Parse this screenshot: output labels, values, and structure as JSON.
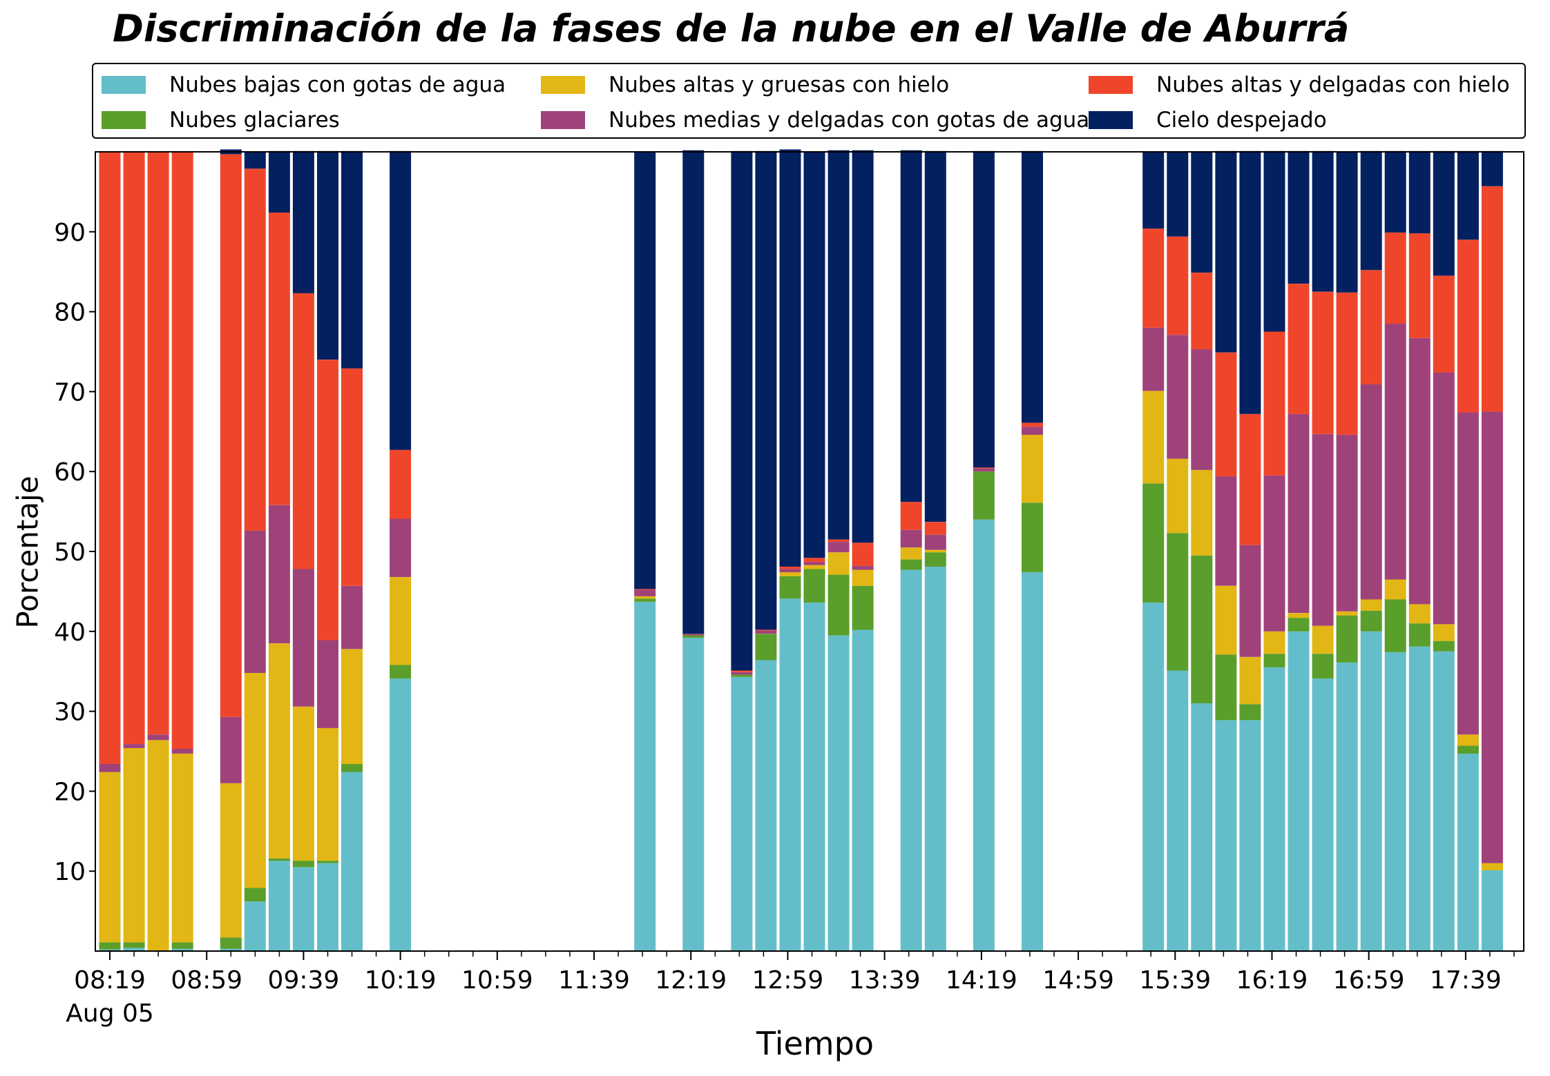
{
  "chart_data": {
    "type": "bar",
    "stacked": true,
    "title": "Discriminación de la fases de la nube en el Valle de Aburrá",
    "xlabel": "Tiempo",
    "ylabel": "Porcentaje",
    "ylim": [
      0,
      100
    ],
    "yticks": [
      10,
      20,
      30,
      40,
      50,
      60,
      70,
      80,
      90
    ],
    "xlim": [
      "08:13",
      "18:03"
    ],
    "date_label": "Aug 05",
    "x_tick_labels": [
      "08:19",
      "08:59",
      "09:39",
      "10:19",
      "10:59",
      "11:39",
      "12:19",
      "12:59",
      "13:39",
      "14:19",
      "14:59",
      "15:39",
      "16:19",
      "16:59",
      "17:39"
    ],
    "minor_tick_interval_minutes": 10,
    "grid": false,
    "legend_position": "top",
    "series": [
      {
        "name": "Nubes bajas con gotas de agua",
        "color": "#64bec9",
        "values": [
          0.2,
          0.4,
          0,
          0.3,
          0.3,
          6.2,
          11.3,
          10.5,
          11.0,
          22.4,
          34.1,
          43.7,
          39.2,
          34.3,
          36.4,
          44.1,
          43.6,
          39.5,
          40.2,
          47.7,
          48.1,
          54.0,
          47.4,
          43.6,
          35.1,
          31.0,
          28.9,
          28.9,
          35.5,
          40.0,
          34.1,
          36.1,
          40.0,
          37.4,
          38.1,
          37.5,
          24.7,
          10.1
        ]
      },
      {
        "name": "Nubes glaciares",
        "color": "#5a9e2b",
        "values": [
          0.9,
          0.7,
          0,
          0.8,
          1.4,
          1.7,
          0.3,
          0.8,
          0.3,
          1.0,
          1.7,
          0.4,
          0.3,
          0.3,
          3.3,
          2.8,
          4.2,
          7.6,
          5.5,
          1.3,
          1.8,
          6.0,
          8.7,
          14.9,
          17.2,
          18.5,
          8.2,
          2.0,
          1.7,
          1.7,
          3.1,
          5.9,
          2.6,
          6.6,
          2.9,
          1.3,
          1.0,
          0
        ]
      },
      {
        "name": "Nubes altas y gruesas con hielo",
        "color": "#e2b614",
        "values": [
          21.3,
          24.3,
          26.4,
          23.6,
          19.3,
          26.9,
          26.9,
          19.3,
          16.6,
          14.4,
          11.0,
          0.3,
          0,
          0,
          0,
          0.5,
          0.5,
          2.8,
          2.0,
          1.5,
          0.3,
          0,
          8.5,
          11.6,
          9.3,
          10.7,
          8.6,
          5.9,
          2.8,
          0.6,
          3.5,
          0.5,
          1.4,
          2.5,
          2.4,
          2.1,
          1.4,
          0.9
        ]
      },
      {
        "name": "Nubes medias y delgadas con gotas de agua",
        "color": "#a0427a",
        "values": [
          1.0,
          0.5,
          0.7,
          0.6,
          8.3,
          17.8,
          17.3,
          17.2,
          11.0,
          7.9,
          7.3,
          0.8,
          0.2,
          0.3,
          0.4,
          0.4,
          0.4,
          1.3,
          0.5,
          2.2,
          1.9,
          0.4,
          1.0,
          7.9,
          15.5,
          15.1,
          13.7,
          14.0,
          19.5,
          24.9,
          24.0,
          22.1,
          26.9,
          32.0,
          33.3,
          31.5,
          40.3,
          56.5
        ]
      },
      {
        "name": "Nubes altas y delgadas con hielo",
        "color": "#ef462b",
        "values": [
          76.6,
          74.1,
          72.9,
          74.7,
          70.4,
          45.3,
          36.6,
          34.5,
          35.1,
          27.2,
          8.6,
          0.1,
          0,
          0.2,
          0.1,
          0.3,
          0.5,
          0.3,
          2.9,
          3.5,
          1.6,
          0.1,
          0.5,
          12.4,
          12.3,
          9.6,
          15.5,
          16.4,
          18.0,
          16.3,
          17.8,
          17.8,
          14.3,
          11.4,
          13.1,
          12.1,
          21.6,
          28.2
        ]
      },
      {
        "name": "Cielo despejado",
        "color": "#032060",
        "values": [
          0,
          0,
          0,
          0,
          0.6,
          2.1,
          7.7,
          17.8,
          26.1,
          27.2,
          37.4,
          54.7,
          60.5,
          65.0,
          59.9,
          52.2,
          50.8,
          48.7,
          49.1,
          44.0,
          46.4,
          39.6,
          34.0,
          9.6,
          10.6,
          15.1,
          25.2,
          32.9,
          22.6,
          16.6,
          17.6,
          17.6,
          14.9,
          10.2,
          10.3,
          15.6,
          11.1,
          4.4
        ]
      }
    ],
    "x": [
      "08:19",
      "08:29",
      "08:39",
      "08:49",
      "09:09",
      "09:19",
      "09:29",
      "09:39",
      "09:49",
      "09:59",
      "10:19",
      "12:00",
      "12:20",
      "12:40",
      "12:50",
      "13:00",
      "13:10",
      "13:20",
      "13:30",
      "13:50",
      "14:00",
      "14:20",
      "14:40",
      "15:30",
      "15:40",
      "15:50",
      "16:00",
      "16:10",
      "16:20",
      "16:30",
      "16:40",
      "16:50",
      "17:00",
      "17:10",
      "17:20",
      "17:30",
      "17:40",
      "17:50"
    ]
  }
}
